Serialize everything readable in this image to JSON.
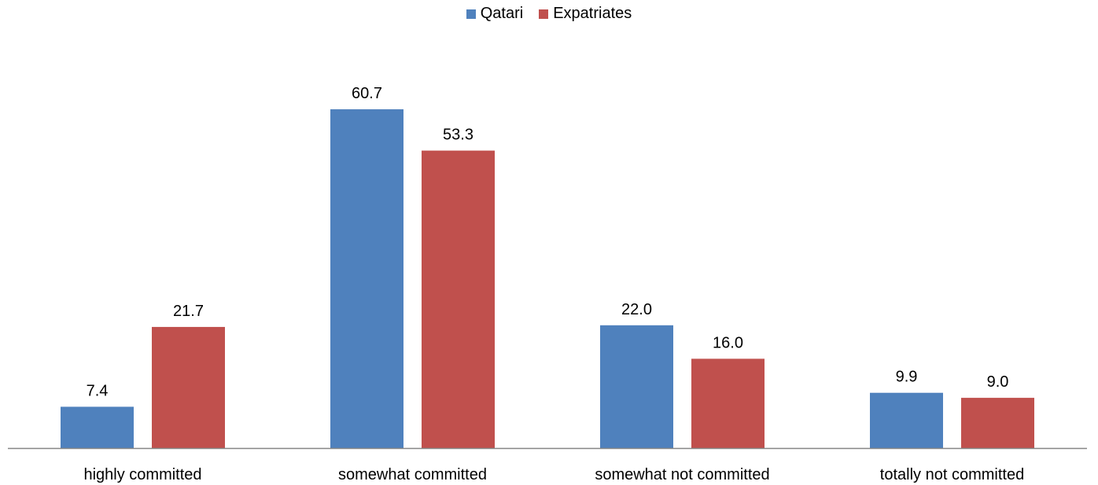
{
  "chart_data": {
    "type": "bar",
    "categories": [
      "highly committed",
      "somewhat committed",
      "somewhat not committed",
      "totally not committed"
    ],
    "series": [
      {
        "name": "Qatari",
        "values": [
          7.4,
          60.7,
          22.0,
          9.9
        ],
        "color": "#4F81BD"
      },
      {
        "name": "Expatriates",
        "values": [
          21.7,
          53.3,
          16.0,
          9.0
        ],
        "color": "#C0504D"
      }
    ],
    "value_labels": [
      [
        "7.4",
        "60.7",
        "22.0",
        "9.9"
      ],
      [
        "21.7",
        "53.3",
        "16.0",
        "9.0"
      ]
    ],
    "legend_position": "top-center",
    "grid": false,
    "ylim": [
      0,
      70
    ]
  }
}
